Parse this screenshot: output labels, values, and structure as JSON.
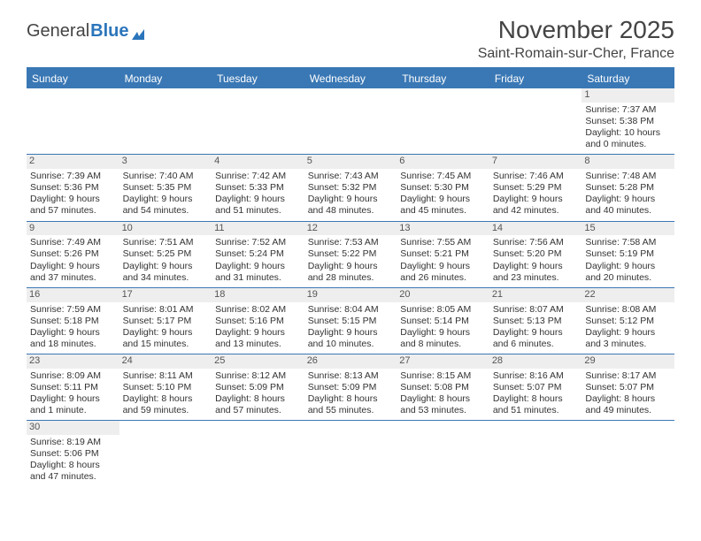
{
  "brand": {
    "part1": "General",
    "part2": "Blue"
  },
  "title": "November 2025",
  "location": "Saint-Romain-sur-Cher, France",
  "colors": {
    "accent": "#3a78b5",
    "text": "#333333",
    "headerGrey": "#eeeeee"
  },
  "weekdays": [
    "Sunday",
    "Monday",
    "Tuesday",
    "Wednesday",
    "Thursday",
    "Friday",
    "Saturday"
  ],
  "weeks": [
    [
      null,
      null,
      null,
      null,
      null,
      null,
      {
        "n": "1",
        "sr": "Sunrise: 7:37 AM",
        "ss": "Sunset: 5:38 PM",
        "d1": "Daylight: 10 hours",
        "d2": "and 0 minutes."
      }
    ],
    [
      {
        "n": "2",
        "sr": "Sunrise: 7:39 AM",
        "ss": "Sunset: 5:36 PM",
        "d1": "Daylight: 9 hours",
        "d2": "and 57 minutes."
      },
      {
        "n": "3",
        "sr": "Sunrise: 7:40 AM",
        "ss": "Sunset: 5:35 PM",
        "d1": "Daylight: 9 hours",
        "d2": "and 54 minutes."
      },
      {
        "n": "4",
        "sr": "Sunrise: 7:42 AM",
        "ss": "Sunset: 5:33 PM",
        "d1": "Daylight: 9 hours",
        "d2": "and 51 minutes."
      },
      {
        "n": "5",
        "sr": "Sunrise: 7:43 AM",
        "ss": "Sunset: 5:32 PM",
        "d1": "Daylight: 9 hours",
        "d2": "and 48 minutes."
      },
      {
        "n": "6",
        "sr": "Sunrise: 7:45 AM",
        "ss": "Sunset: 5:30 PM",
        "d1": "Daylight: 9 hours",
        "d2": "and 45 minutes."
      },
      {
        "n": "7",
        "sr": "Sunrise: 7:46 AM",
        "ss": "Sunset: 5:29 PM",
        "d1": "Daylight: 9 hours",
        "d2": "and 42 minutes."
      },
      {
        "n": "8",
        "sr": "Sunrise: 7:48 AM",
        "ss": "Sunset: 5:28 PM",
        "d1": "Daylight: 9 hours",
        "d2": "and 40 minutes."
      }
    ],
    [
      {
        "n": "9",
        "sr": "Sunrise: 7:49 AM",
        "ss": "Sunset: 5:26 PM",
        "d1": "Daylight: 9 hours",
        "d2": "and 37 minutes."
      },
      {
        "n": "10",
        "sr": "Sunrise: 7:51 AM",
        "ss": "Sunset: 5:25 PM",
        "d1": "Daylight: 9 hours",
        "d2": "and 34 minutes."
      },
      {
        "n": "11",
        "sr": "Sunrise: 7:52 AM",
        "ss": "Sunset: 5:24 PM",
        "d1": "Daylight: 9 hours",
        "d2": "and 31 minutes."
      },
      {
        "n": "12",
        "sr": "Sunrise: 7:53 AM",
        "ss": "Sunset: 5:22 PM",
        "d1": "Daylight: 9 hours",
        "d2": "and 28 minutes."
      },
      {
        "n": "13",
        "sr": "Sunrise: 7:55 AM",
        "ss": "Sunset: 5:21 PM",
        "d1": "Daylight: 9 hours",
        "d2": "and 26 minutes."
      },
      {
        "n": "14",
        "sr": "Sunrise: 7:56 AM",
        "ss": "Sunset: 5:20 PM",
        "d1": "Daylight: 9 hours",
        "d2": "and 23 minutes."
      },
      {
        "n": "15",
        "sr": "Sunrise: 7:58 AM",
        "ss": "Sunset: 5:19 PM",
        "d1": "Daylight: 9 hours",
        "d2": "and 20 minutes."
      }
    ],
    [
      {
        "n": "16",
        "sr": "Sunrise: 7:59 AM",
        "ss": "Sunset: 5:18 PM",
        "d1": "Daylight: 9 hours",
        "d2": "and 18 minutes."
      },
      {
        "n": "17",
        "sr": "Sunrise: 8:01 AM",
        "ss": "Sunset: 5:17 PM",
        "d1": "Daylight: 9 hours",
        "d2": "and 15 minutes."
      },
      {
        "n": "18",
        "sr": "Sunrise: 8:02 AM",
        "ss": "Sunset: 5:16 PM",
        "d1": "Daylight: 9 hours",
        "d2": "and 13 minutes."
      },
      {
        "n": "19",
        "sr": "Sunrise: 8:04 AM",
        "ss": "Sunset: 5:15 PM",
        "d1": "Daylight: 9 hours",
        "d2": "and 10 minutes."
      },
      {
        "n": "20",
        "sr": "Sunrise: 8:05 AM",
        "ss": "Sunset: 5:14 PM",
        "d1": "Daylight: 9 hours",
        "d2": "and 8 minutes."
      },
      {
        "n": "21",
        "sr": "Sunrise: 8:07 AM",
        "ss": "Sunset: 5:13 PM",
        "d1": "Daylight: 9 hours",
        "d2": "and 6 minutes."
      },
      {
        "n": "22",
        "sr": "Sunrise: 8:08 AM",
        "ss": "Sunset: 5:12 PM",
        "d1": "Daylight: 9 hours",
        "d2": "and 3 minutes."
      }
    ],
    [
      {
        "n": "23",
        "sr": "Sunrise: 8:09 AM",
        "ss": "Sunset: 5:11 PM",
        "d1": "Daylight: 9 hours",
        "d2": "and 1 minute."
      },
      {
        "n": "24",
        "sr": "Sunrise: 8:11 AM",
        "ss": "Sunset: 5:10 PM",
        "d1": "Daylight: 8 hours",
        "d2": "and 59 minutes."
      },
      {
        "n": "25",
        "sr": "Sunrise: 8:12 AM",
        "ss": "Sunset: 5:09 PM",
        "d1": "Daylight: 8 hours",
        "d2": "and 57 minutes."
      },
      {
        "n": "26",
        "sr": "Sunrise: 8:13 AM",
        "ss": "Sunset: 5:09 PM",
        "d1": "Daylight: 8 hours",
        "d2": "and 55 minutes."
      },
      {
        "n": "27",
        "sr": "Sunrise: 8:15 AM",
        "ss": "Sunset: 5:08 PM",
        "d1": "Daylight: 8 hours",
        "d2": "and 53 minutes."
      },
      {
        "n": "28",
        "sr": "Sunrise: 8:16 AM",
        "ss": "Sunset: 5:07 PM",
        "d1": "Daylight: 8 hours",
        "d2": "and 51 minutes."
      },
      {
        "n": "29",
        "sr": "Sunrise: 8:17 AM",
        "ss": "Sunset: 5:07 PM",
        "d1": "Daylight: 8 hours",
        "d2": "and 49 minutes."
      }
    ],
    [
      {
        "n": "30",
        "sr": "Sunrise: 8:19 AM",
        "ss": "Sunset: 5:06 PM",
        "d1": "Daylight: 8 hours",
        "d2": "and 47 minutes."
      },
      null,
      null,
      null,
      null,
      null,
      null
    ]
  ]
}
